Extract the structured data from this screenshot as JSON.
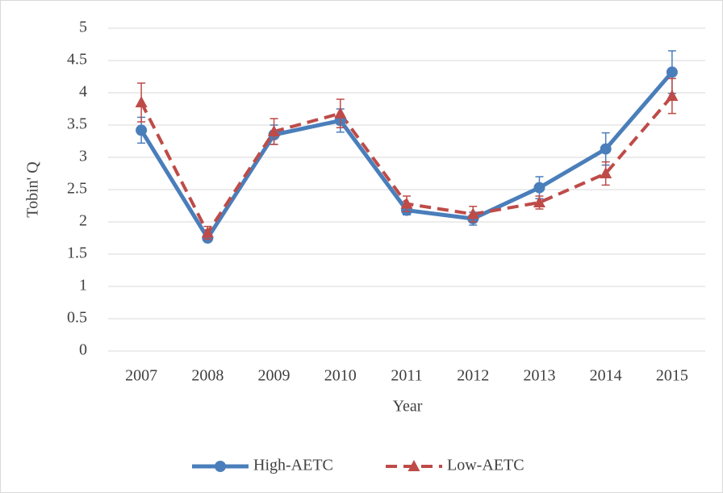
{
  "chart_data": {
    "type": "line",
    "x_label": "Year",
    "y_label": "Tobin' Q",
    "categories": [
      "2007",
      "2008",
      "2009",
      "2010",
      "2011",
      "2012",
      "2013",
      "2014",
      "2015"
    ],
    "series": [
      {
        "name": "High-AETC",
        "color": "#4a7ebb",
        "marker": "circle",
        "dash": false,
        "values": [
          3.42,
          1.75,
          3.35,
          3.57,
          2.18,
          2.05,
          2.53,
          3.13,
          4.32
        ],
        "errors": [
          0.2,
          0.05,
          0.15,
          0.18,
          0.07,
          0.1,
          0.17,
          0.25,
          0.33
        ]
      },
      {
        "name": "Low-AETC",
        "color": "#be4b48",
        "marker": "triangle",
        "dash": true,
        "values": [
          3.85,
          1.83,
          3.4,
          3.68,
          2.28,
          2.12,
          2.3,
          2.75,
          3.95
        ],
        "errors": [
          0.3,
          0.1,
          0.2,
          0.22,
          0.12,
          0.12,
          0.1,
          0.18,
          0.27
        ]
      }
    ],
    "ylim": [
      0,
      5
    ],
    "yticks": [
      0,
      0.5,
      1,
      1.5,
      2,
      2.5,
      3,
      3.5,
      4,
      4.5,
      5
    ],
    "grid": true,
    "legend": "bottom"
  }
}
